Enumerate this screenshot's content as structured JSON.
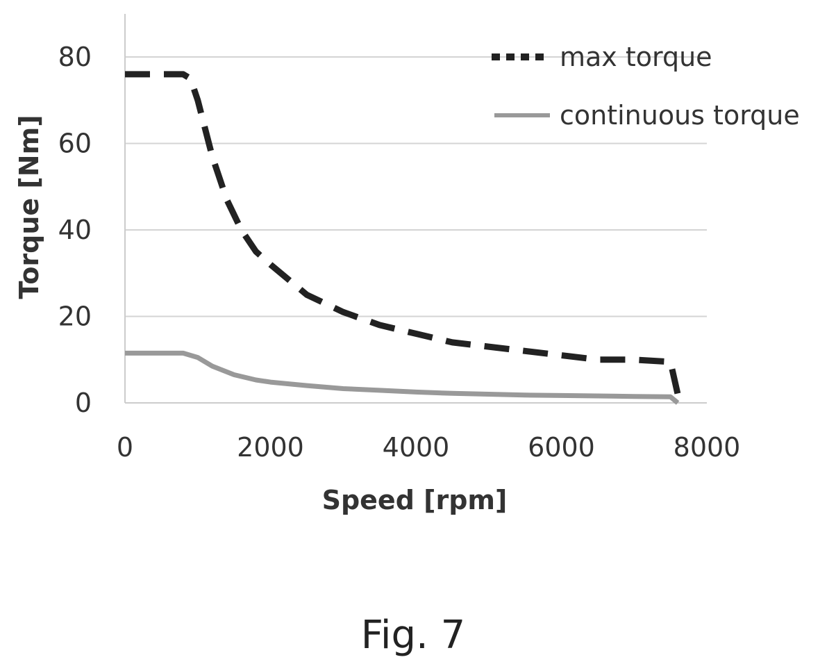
{
  "chart_data": {
    "type": "line",
    "xlabel": "Speed [rpm]",
    "ylabel": "Torque [Nm]",
    "xlim": [
      0,
      8000
    ],
    "ylim": [
      0,
      80
    ],
    "xticks": [
      0,
      2000,
      4000,
      6000,
      8000
    ],
    "yticks": [
      0,
      20,
      40,
      60,
      80
    ],
    "grid": "horizontal",
    "legend_position": "top-right",
    "series": [
      {
        "name": "max torque",
        "style": "dashed",
        "color": "#222222",
        "x": [
          0,
          800,
          900,
          1000,
          1200,
          1400,
          1600,
          1800,
          2000,
          2500,
          3000,
          3500,
          4000,
          4500,
          5000,
          5500,
          6000,
          6500,
          7000,
          7500,
          7600
        ],
        "y": [
          76,
          76,
          75,
          70,
          57,
          47,
          40,
          35,
          32,
          25,
          21,
          18,
          16,
          14,
          13,
          12,
          11,
          10,
          10,
          9.5,
          2
        ]
      },
      {
        "name": "continuous torque",
        "style": "solid",
        "color": "#999999",
        "x": [
          0,
          800,
          1000,
          1200,
          1500,
          1800,
          2000,
          2500,
          3000,
          3500,
          4000,
          4500,
          5000,
          5500,
          6000,
          6500,
          7000,
          7500,
          7600
        ],
        "y": [
          11.5,
          11.5,
          10.5,
          8.5,
          6.5,
          5.3,
          4.8,
          4.0,
          3.3,
          2.9,
          2.5,
          2.2,
          2.0,
          1.8,
          1.7,
          1.6,
          1.5,
          1.4,
          0
        ]
      }
    ]
  },
  "caption": "Fig. 7"
}
